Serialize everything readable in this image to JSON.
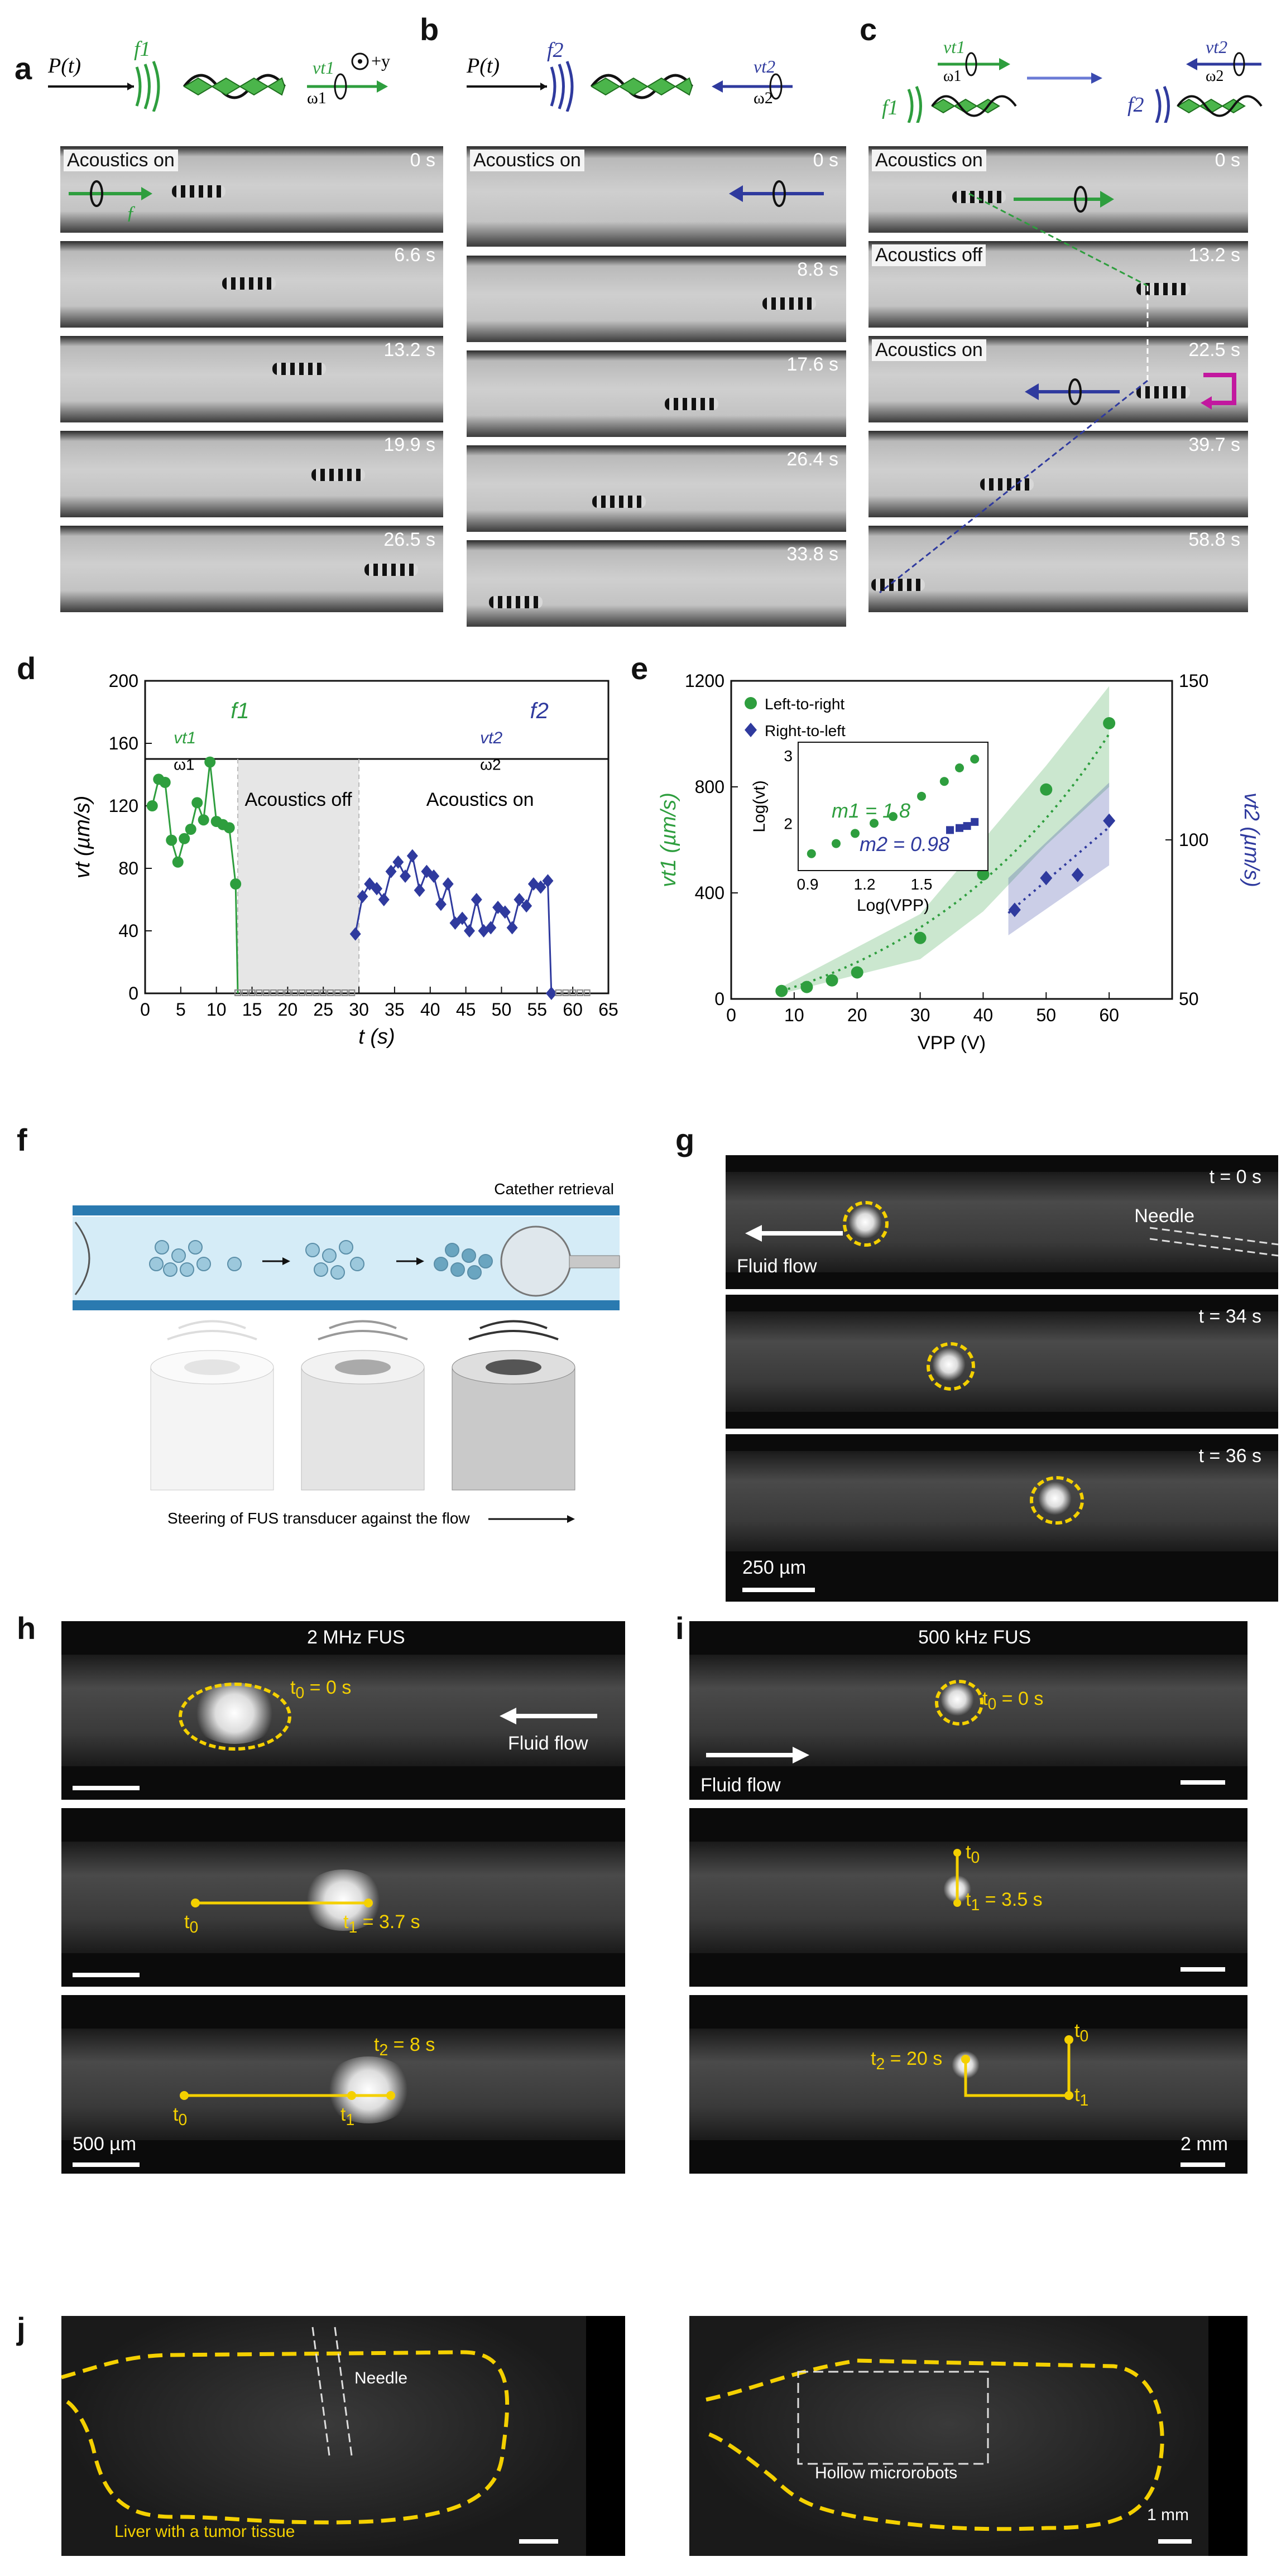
{
  "panels": {
    "a": {
      "letter": "a",
      "info": "Acoustics on",
      "times": [
        "0 s",
        "6.6 s",
        "13.2 s",
        "19.9 s",
        "26.5 s"
      ],
      "header": {
        "pt": "P(t)",
        "f": "f1",
        "v": "vt1",
        "w": "ω1",
        "axis": "+y"
      }
    },
    "b": {
      "letter": "b",
      "info": "Acoustics on",
      "times": [
        "0 s",
        "8.8 s",
        "17.6 s",
        "26.4 s",
        "33.8 s"
      ],
      "header": {
        "pt": "P(t)",
        "f": "f2",
        "v": "vt2",
        "w": "ω2"
      }
    },
    "c": {
      "letter": "c",
      "times": [
        "0 s",
        "13.2 s",
        "22.5 s",
        "39.7 s",
        "58.8 s"
      ],
      "infos": [
        "Acoustics on",
        "Acoustics off",
        "Acoustics on"
      ],
      "header": {
        "f1": "f1",
        "f2": "f2",
        "v1": "vt1",
        "w1": "ω1",
        "v2": "vt2",
        "w2": "ω2"
      }
    },
    "d": {
      "letter": "d"
    },
    "e": {
      "letter": "e"
    },
    "f": {
      "letter": "f",
      "catheter": "Catether retrieval",
      "steer": "Steering of FUS transducer against the flow"
    },
    "g": {
      "letter": "g",
      "times": [
        "t = 0 s",
        "t = 34 s",
        "t = 36 s"
      ],
      "needle": "Needle",
      "flow": "Fluid flow",
      "scale": "250 µm"
    },
    "h": {
      "letter": "h",
      "title": "2 MHz FUS",
      "flow": "Fluid flow",
      "scale": "500 µm",
      "t0a": "t",
      "t0a_sub": "0",
      "t0a_rest": " = 0 s",
      "t0b": "t",
      "t0b_sub": "0",
      "t1b": "t",
      "t1b_sub": "1",
      "t1b_rest": " = 3.7 s",
      "t0c": "t",
      "t0c_sub": "0",
      "t1c": "t",
      "t1c_sub": "1",
      "t2c": "t",
      "t2c_sub": "2",
      "t2c_rest": " = 8 s"
    },
    "i": {
      "letter": "i",
      "title": "500 kHz FUS",
      "flow": "Fluid flow",
      "scale": "2 mm",
      "t0a": "t",
      "t0a_sub": "0",
      "t0a_rest": " = 0 s",
      "t0b": "t",
      "t0b_sub": "0",
      "t1b": "t",
      "t1b_sub": "1",
      "t1b_rest": " = 3.5 s",
      "t2c": "t",
      "t2c_sub": "2",
      "t2c_rest": " = 20 s",
      "t0c": "t",
      "t0c_sub": "0",
      "t1c": "t",
      "t1c_sub": "1"
    },
    "j": {
      "letter": "j",
      "needle": "Needle",
      "tissue": "Liver with a tumor tissue",
      "robots": "Hollow microrobots",
      "scale": "1 mm"
    }
  },
  "colors": {
    "green": "#2e9e3e",
    "blue": "#2f3a9e",
    "yellow": "#f4d000",
    "magenta": "#c2189f"
  },
  "chart_data": [
    {
      "type": "scatter",
      "panel": "d",
      "xlabel": "t (s)",
      "ylabel": "vt (µm/s)",
      "xlim": [
        0,
        65
      ],
      "ylim": [
        0,
        200
      ],
      "xticks": [
        0,
        5,
        10,
        15,
        20,
        25,
        30,
        35,
        40,
        45,
        50,
        55,
        60,
        65
      ],
      "yticks": [
        0,
        40,
        80,
        120,
        160,
        200
      ],
      "annotations": [
        "Acoustics off",
        "Acoustics on",
        "f1",
        "f2",
        "vt1",
        "ω1",
        "vt2",
        "ω2"
      ],
      "series": [
        {
          "color": "#2e9e3e",
          "x": [
            1,
            1.9,
            2.8,
            3.7,
            4.6,
            5.5,
            6.4,
            7.3,
            8.2,
            9.1,
            10,
            10.9,
            11.8,
            12.7
          ],
          "values": [
            120,
            137,
            135,
            98,
            84,
            99,
            105,
            122,
            111,
            148,
            110,
            108,
            106,
            70
          ],
          "lineTo": [
            13,
            0
          ]
        },
        {
          "color": "#2f3a9e",
          "x": [
            29.5,
            30.5,
            31.5,
            32.5,
            33.5,
            34.5,
            35.5,
            36.5,
            37.5,
            38.5,
            39.5,
            40.5,
            41.5,
            42.5,
            43.5,
            44.5,
            45.5,
            46.5,
            47.5,
            48.5,
            49.5,
            50.5,
            51.5,
            52.5,
            53.5,
            54.5,
            55.5,
            56.5,
            57
          ],
          "values": [
            38,
            62,
            70,
            67,
            60,
            78,
            84,
            75,
            88,
            66,
            78,
            75,
            57,
            70,
            45,
            48,
            40,
            60,
            40,
            42,
            55,
            52,
            42,
            60,
            56,
            70,
            68,
            72,
            0
          ]
        },
        {
          "color": "#888888",
          "x": [
            13,
            14,
            15,
            16,
            17,
            18,
            19,
            20,
            21,
            22,
            23,
            24,
            25,
            26,
            27,
            28,
            29,
            58,
            59,
            60,
            61,
            62
          ],
          "values": [
            0,
            0,
            0,
            0,
            0,
            0,
            0,
            0,
            0,
            0,
            0,
            0,
            0,
            0,
            0,
            0,
            0,
            0,
            0,
            0,
            0,
            0
          ]
        }
      ]
    },
    {
      "type": "scatter",
      "panel": "e",
      "xlabel": "VPP (V)",
      "ylabel": "vt1 (µm/s)",
      "y2label": "vt2 (µm/s)",
      "xlim": [
        0,
        70
      ],
      "ylim": [
        0,
        1200
      ],
      "y2lim": [
        50,
        150
      ],
      "xticks": [
        0,
        10,
        20,
        30,
        40,
        50,
        60
      ],
      "yticks": [
        0,
        400,
        800,
        1200
      ],
      "y2ticks": [
        50,
        100,
        150
      ],
      "legend": [
        "Left-to-right",
        "Right-to-left"
      ],
      "series": [
        {
          "name": "Left-to-right",
          "color": "#2e9e3e",
          "x": [
            8,
            12,
            16,
            20,
            30,
            40,
            50,
            60
          ],
          "values": [
            30,
            45,
            70,
            100,
            230,
            470,
            790,
            1040
          ]
        },
        {
          "name": "Right-to-left",
          "color": "#2f3a9e",
          "x": [
            45,
            50,
            55,
            60
          ],
          "values": [
            78,
            88,
            89,
            106
          ],
          "axis": "y2"
        }
      ],
      "inset": {
        "xlabel": "Log(VPP)",
        "ylabel": "Log(vt)",
        "xticks": [
          0.9,
          1.2,
          1.5
        ],
        "yticks": [
          2,
          3
        ],
        "xlim": [
          0.85,
          1.85
        ],
        "ylim": [
          1.3,
          3.2
        ],
        "labels": [
          "m1 = 1.8",
          "m2 = 0.98"
        ],
        "series": [
          {
            "color": "#2e9e3e",
            "x": [
              0.92,
              1.05,
              1.15,
              1.25,
              1.35,
              1.5,
              1.62,
              1.7,
              1.78
            ],
            "values": [
              1.55,
              1.7,
              1.85,
              2.0,
              2.1,
              2.4,
              2.62,
              2.82,
              2.95
            ]
          },
          {
            "color": "#2f3a9e",
            "x": [
              1.65,
              1.7,
              1.74,
              1.78
            ],
            "values": [
              1.9,
              1.93,
              1.96,
              2.02
            ]
          }
        ]
      }
    }
  ]
}
